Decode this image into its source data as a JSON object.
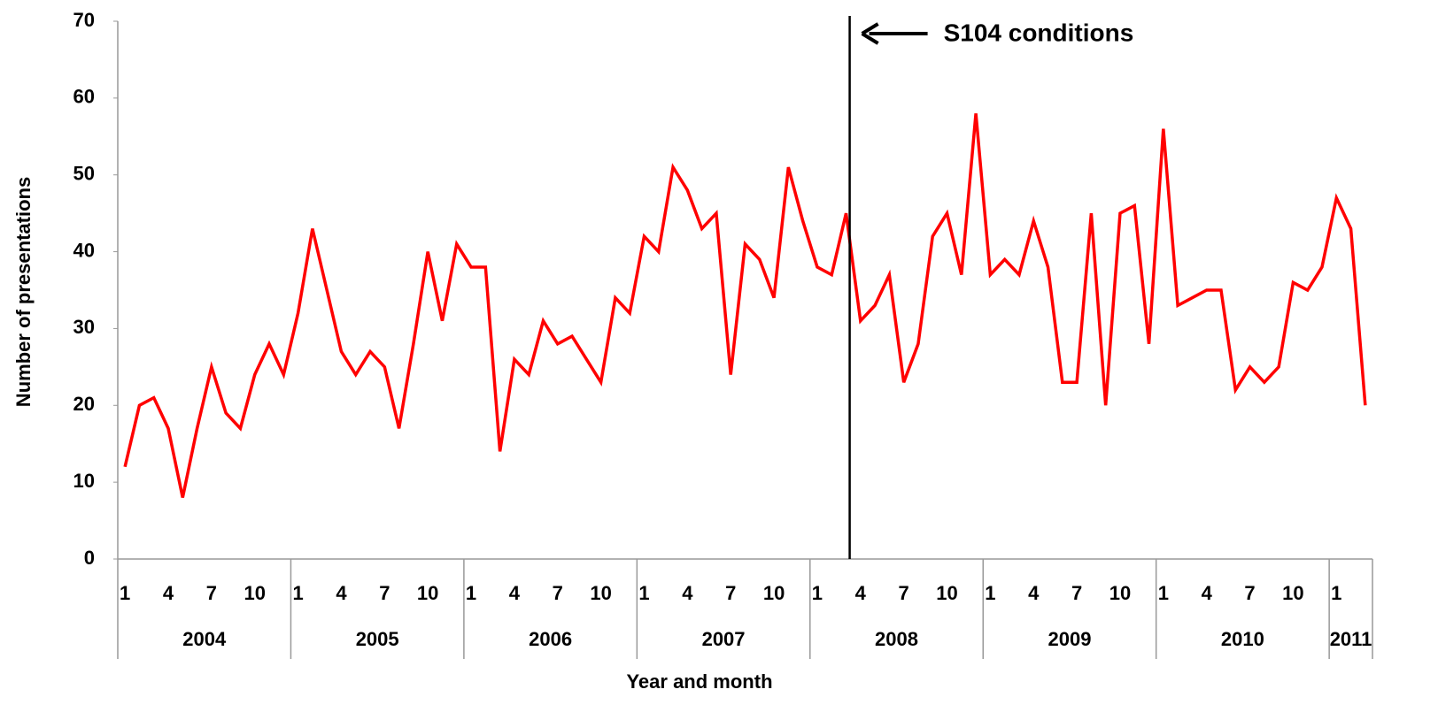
{
  "chart_data": {
    "type": "line",
    "y_label": "Number of presentations",
    "x_label": "Year and month",
    "x": [
      "2004-01",
      "2004-02",
      "2004-03",
      "2004-04",
      "2004-05",
      "2004-06",
      "2004-07",
      "2004-08",
      "2004-09",
      "2004-10",
      "2004-11",
      "2004-12",
      "2005-01",
      "2005-02",
      "2005-03",
      "2005-04",
      "2005-05",
      "2005-06",
      "2005-07",
      "2005-08",
      "2005-09",
      "2005-10",
      "2005-11",
      "2005-12",
      "2006-01",
      "2006-02",
      "2006-03",
      "2006-04",
      "2006-05",
      "2006-06",
      "2006-07",
      "2006-08",
      "2006-09",
      "2006-10",
      "2006-11",
      "2006-12",
      "2007-01",
      "2007-02",
      "2007-03",
      "2007-04",
      "2007-05",
      "2007-06",
      "2007-07",
      "2007-08",
      "2007-09",
      "2007-10",
      "2007-11",
      "2007-12",
      "2008-01",
      "2008-02",
      "2008-03",
      "2008-04",
      "2008-05",
      "2008-06",
      "2008-07",
      "2008-08",
      "2008-09",
      "2008-10",
      "2008-11",
      "2008-12",
      "2009-01",
      "2009-02",
      "2009-03",
      "2009-04",
      "2009-05",
      "2009-06",
      "2009-07",
      "2009-08",
      "2009-09",
      "2009-10",
      "2009-11",
      "2009-12",
      "2010-01",
      "2010-02",
      "2010-03",
      "2010-04",
      "2010-05",
      "2010-06",
      "2010-07",
      "2010-08",
      "2010-09",
      "2010-10",
      "2010-11",
      "2010-12",
      "2011-01",
      "2011-02",
      "2011-03"
    ],
    "series": [
      {
        "name": "Presentations",
        "color": "#ff0000",
        "values": [
          12,
          20,
          21,
          17,
          8,
          17,
          25,
          19,
          17,
          24,
          28,
          24,
          32,
          43,
          35,
          27,
          24,
          27,
          25,
          17,
          28,
          40,
          31,
          41,
          38,
          38,
          14,
          26,
          24,
          31,
          28,
          29,
          26,
          23,
          34,
          32,
          42,
          40,
          51,
          48,
          43,
          45,
          24,
          41,
          39,
          34,
          51,
          44,
          38,
          37,
          45,
          31,
          33,
          37,
          23,
          28,
          42,
          45,
          37,
          58,
          37,
          39,
          37,
          44,
          38,
          23,
          23,
          45,
          20,
          45,
          46,
          28,
          56,
          33,
          34,
          35,
          35,
          22,
          25,
          23,
          25,
          36,
          35,
          38,
          47,
          43,
          20
        ]
      }
    ],
    "xticks": [
      {
        "value": "2004-01",
        "label": "1"
      },
      {
        "value": "2004-04",
        "label": "4"
      },
      {
        "value": "2004-07",
        "label": "7"
      },
      {
        "value": "2004-10",
        "label": "10"
      },
      {
        "value": "2005-01",
        "label": "1"
      },
      {
        "value": "2005-04",
        "label": "4"
      },
      {
        "value": "2005-07",
        "label": "7"
      },
      {
        "value": "2005-10",
        "label": "10"
      },
      {
        "value": "2006-01",
        "label": "1"
      },
      {
        "value": "2006-04",
        "label": "4"
      },
      {
        "value": "2006-07",
        "label": "7"
      },
      {
        "value": "2006-10",
        "label": "10"
      },
      {
        "value": "2007-01",
        "label": "1"
      },
      {
        "value": "2007-04",
        "label": "4"
      },
      {
        "value": "2007-07",
        "label": "7"
      },
      {
        "value": "2007-10",
        "label": "10"
      },
      {
        "value": "2008-01",
        "label": "1"
      },
      {
        "value": "2008-04",
        "label": "4"
      },
      {
        "value": "2008-07",
        "label": "7"
      },
      {
        "value": "2008-10",
        "label": "10"
      },
      {
        "value": "2009-01",
        "label": "1"
      },
      {
        "value": "2009-04",
        "label": "4"
      },
      {
        "value": "2009-07",
        "label": "7"
      },
      {
        "value": "2009-10",
        "label": "10"
      },
      {
        "value": "2010-01",
        "label": "1"
      },
      {
        "value": "2010-04",
        "label": "4"
      },
      {
        "value": "2010-07",
        "label": "7"
      },
      {
        "value": "2010-10",
        "label": "10"
      },
      {
        "value": "2011-01",
        "label": "1"
      }
    ],
    "year_labels": [
      "2004",
      "2005",
      "2006",
      "2007",
      "2008",
      "2009",
      "2010",
      "2011"
    ],
    "ylim": [
      0,
      70
    ],
    "yticks": [
      0,
      10,
      20,
      30,
      40,
      50,
      60,
      70
    ],
    "annotation": {
      "text": "S104 conditions",
      "x": "2008-03"
    }
  }
}
